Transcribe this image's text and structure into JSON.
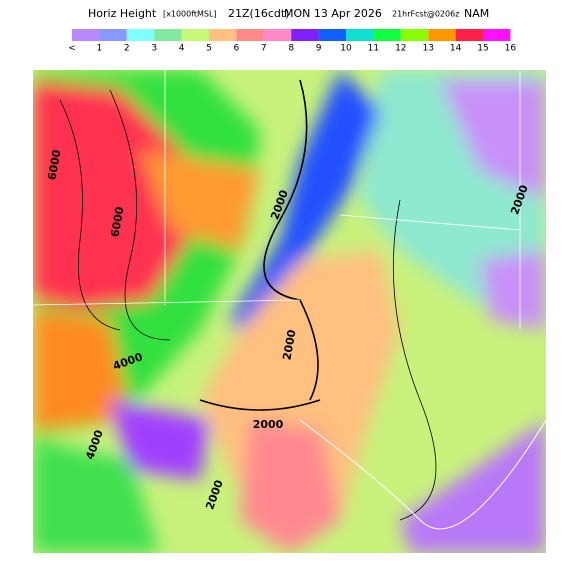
{
  "title": {
    "name": "Horiz Height",
    "units": "[x1000ftMSL]",
    "time": "21Z(16cdt)",
    "date": "MON 13 Apr 2026",
    "forecast": "21hrFcst@0206z",
    "model": "NAM"
  },
  "colorbar": {
    "labels": [
      "<",
      "1",
      "2",
      "3",
      "4",
      "5",
      "6",
      "7",
      "8",
      "9",
      "10",
      "11",
      "12",
      "13",
      "14",
      "15",
      "16"
    ]
  },
  "map": {
    "contour_labels": [
      "6000",
      "6000",
      "4000",
      "2000",
      "2000",
      "4000",
      "2000",
      "2000",
      "2000"
    ]
  }
}
